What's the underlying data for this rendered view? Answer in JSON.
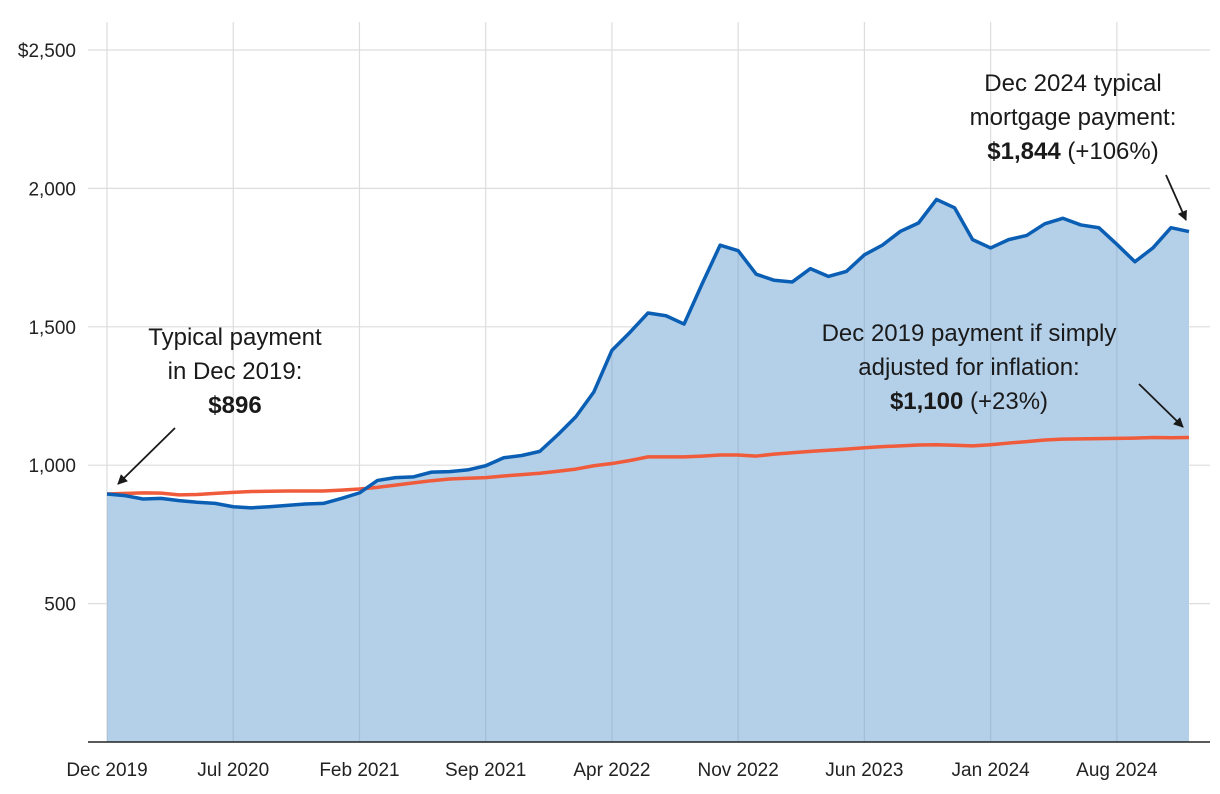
{
  "chart_data": {
    "type": "area",
    "title": "",
    "xlabel": "",
    "ylabel": "",
    "ylim": [
      0,
      2500
    ],
    "grid": true,
    "y_ticks": [
      {
        "value": 500,
        "label": "500"
      },
      {
        "value": 1000,
        "label": "1,000"
      },
      {
        "value": 1500,
        "label": "1,500"
      },
      {
        "value": 2000,
        "label": "2,000"
      },
      {
        "value": 2500,
        "label": "$2,500"
      }
    ],
    "x_ticks": [
      {
        "index": 0,
        "label": "Dec 2019"
      },
      {
        "index": 7,
        "label": "Jul 2020"
      },
      {
        "index": 14,
        "label": "Feb 2021"
      },
      {
        "index": 21,
        "label": "Sep 2021"
      },
      {
        "index": 28,
        "label": "Apr 2022"
      },
      {
        "index": 35,
        "label": "Nov 2022"
      },
      {
        "index": 42,
        "label": "Jun 2023"
      },
      {
        "index": 49,
        "label": "Jan 2024"
      },
      {
        "index": 56,
        "label": "Aug 2024"
      }
    ],
    "series": [
      {
        "name": "Typical mortgage payment",
        "color": "#0a5fb4",
        "fill": "#b4cfe8",
        "values": [
          896,
          890,
          878,
          880,
          872,
          866,
          862,
          850,
          846,
          850,
          855,
          860,
          862,
          880,
          900,
          945,
          955,
          958,
          975,
          977,
          983,
          998,
          1027,
          1035,
          1050,
          1110,
          1175,
          1265,
          1415,
          1480,
          1550,
          1540,
          1510,
          1655,
          1795,
          1775,
          1690,
          1668,
          1662,
          1710,
          1682,
          1700,
          1760,
          1795,
          1845,
          1875,
          1960,
          1930,
          1815,
          1785,
          1815,
          1830,
          1872,
          1892,
          1868,
          1858,
          1798,
          1735,
          1785,
          1858,
          1844
        ]
      },
      {
        "name": "Dec 2019 payment adjusted for inflation",
        "color": "#ef5b3b",
        "values": [
          896,
          898,
          900,
          899,
          893,
          894,
          898,
          902,
          905,
          906,
          907,
          907,
          907,
          910,
          914,
          920,
          928,
          936,
          944,
          950,
          953,
          955,
          961,
          966,
          971,
          978,
          986,
          998,
          1006,
          1017,
          1030,
          1030,
          1030,
          1033,
          1037,
          1037,
          1033,
          1040,
          1045,
          1050,
          1054,
          1058,
          1063,
          1067,
          1070,
          1073,
          1074,
          1072,
          1070,
          1074,
          1080,
          1085,
          1091,
          1094,
          1095,
          1096,
          1097,
          1098,
          1100,
          1099,
          1100
        ]
      }
    ]
  },
  "annotations": {
    "start": {
      "line1": "Typical payment",
      "line2": "in Dec 2019:",
      "value": "$896"
    },
    "end_typical": {
      "line1": "Dec 2024 typical",
      "line2": "mortgage payment:",
      "value": "$1,844",
      "change": " (+106%)"
    },
    "end_inflation": {
      "line1": "Dec 2019 payment if simply",
      "line2": "adjusted for inflation:",
      "value": "$1,100",
      "change": " (+23%)"
    }
  }
}
